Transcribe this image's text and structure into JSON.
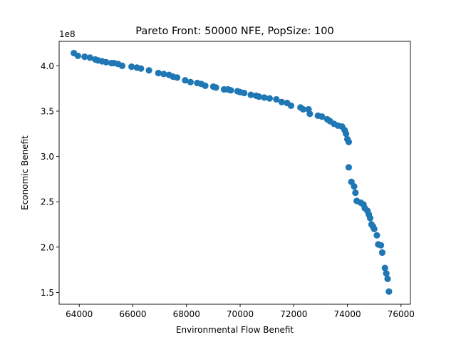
{
  "chart_data": {
    "type": "scatter",
    "title": "Pareto Front: 50000 NFE, PopSize: 100",
    "xlabel": "Environmental Flow Benefit",
    "ylabel": "Economic Benefit",
    "y_offset_label": "1e8",
    "xlim": [
      63250,
      76350
    ],
    "ylim": [
      1.37,
      4.27
    ],
    "x_ticks": [
      64000,
      66000,
      68000,
      70000,
      72000,
      74000,
      76000
    ],
    "x_tick_labels": [
      "64000",
      "66000",
      "68000",
      "70000",
      "72000",
      "74000",
      "76000"
    ],
    "y_ticks": [
      1.5,
      2.0,
      2.5,
      3.0,
      3.5,
      4.0
    ],
    "y_tick_labels": [
      "1.5",
      "2.0",
      "2.5",
      "3.0",
      "3.5",
      "4.0"
    ],
    "y_scale_note": "y values in units of 1e8",
    "marker_color": "#1f77b4",
    "grid": false,
    "legend": "none",
    "points": [
      [
        63800,
        4.14
      ],
      [
        63950,
        4.11
      ],
      [
        64200,
        4.1
      ],
      [
        64400,
        4.09
      ],
      [
        64600,
        4.07
      ],
      [
        64700,
        4.06
      ],
      [
        64850,
        4.05
      ],
      [
        65000,
        4.04
      ],
      [
        65200,
        4.03
      ],
      [
        65300,
        4.03
      ],
      [
        65450,
        4.02
      ],
      [
        65600,
        4.0
      ],
      [
        65950,
        3.99
      ],
      [
        66150,
        3.98
      ],
      [
        66300,
        3.97
      ],
      [
        66600,
        3.95
      ],
      [
        66950,
        3.92
      ],
      [
        67150,
        3.91
      ],
      [
        67350,
        3.9
      ],
      [
        67500,
        3.88
      ],
      [
        67650,
        3.87
      ],
      [
        67950,
        3.84
      ],
      [
        68150,
        3.82
      ],
      [
        68400,
        3.81
      ],
      [
        68550,
        3.8
      ],
      [
        68700,
        3.78
      ],
      [
        69000,
        3.77
      ],
      [
        69100,
        3.76
      ],
      [
        69400,
        3.74
      ],
      [
        69550,
        3.74
      ],
      [
        69650,
        3.73
      ],
      [
        69900,
        3.72
      ],
      [
        70000,
        3.71
      ],
      [
        70150,
        3.7
      ],
      [
        70400,
        3.68
      ],
      [
        70600,
        3.67
      ],
      [
        70700,
        3.66
      ],
      [
        70900,
        3.65
      ],
      [
        71100,
        3.64
      ],
      [
        71350,
        3.63
      ],
      [
        71550,
        3.6
      ],
      [
        71750,
        3.59
      ],
      [
        71900,
        3.56
      ],
      [
        72250,
        3.54
      ],
      [
        72350,
        3.52
      ],
      [
        72550,
        3.52
      ],
      [
        72600,
        3.47
      ],
      [
        72900,
        3.45
      ],
      [
        73050,
        3.44
      ],
      [
        73250,
        3.41
      ],
      [
        73350,
        3.39
      ],
      [
        73500,
        3.36
      ],
      [
        73650,
        3.34
      ],
      [
        73800,
        3.33
      ],
      [
        73900,
        3.29
      ],
      [
        73950,
        3.25
      ],
      [
        74000,
        3.19
      ],
      [
        74050,
        3.16
      ],
      [
        74050,
        2.88
      ],
      [
        74150,
        2.72
      ],
      [
        74250,
        2.67
      ],
      [
        74300,
        2.6
      ],
      [
        74350,
        2.51
      ],
      [
        74500,
        2.49
      ],
      [
        74600,
        2.47
      ],
      [
        74650,
        2.43
      ],
      [
        74750,
        2.4
      ],
      [
        74800,
        2.36
      ],
      [
        74850,
        2.32
      ],
      [
        74900,
        2.25
      ],
      [
        74950,
        2.23
      ],
      [
        75000,
        2.2
      ],
      [
        75100,
        2.13
      ],
      [
        75150,
        2.03
      ],
      [
        75250,
        2.02
      ],
      [
        75300,
        1.94
      ],
      [
        75400,
        1.77
      ],
      [
        75450,
        1.71
      ],
      [
        75500,
        1.65
      ],
      [
        75550,
        1.51
      ]
    ]
  }
}
